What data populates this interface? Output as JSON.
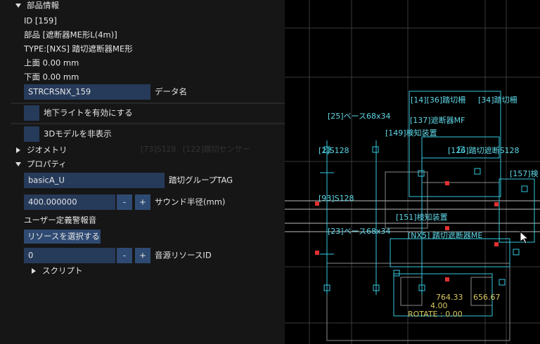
{
  "panel": {
    "section_info": "部品情報",
    "id": "ID [159]",
    "part": "部品 [遮断器ME形L(4m)]",
    "type": "TYPE:[NXS] 踏切遮断器ME形",
    "top": "上面 0.00 mm",
    "bottom": "下面 0.00 mm",
    "data_name_value": "STRCRSNX_159",
    "data_name_label": "データ名",
    "underground_light": "地下ライトを有効にする",
    "hide_3d": "3Dモデルを非表示",
    "section_geometry": "ジオメトリ",
    "section_properties": "プロパティ",
    "group_tag_value": "basicA_U",
    "group_tag_label": "踏切グループTAG",
    "sound_radius_value": "400.000000",
    "minus": "-",
    "plus": "+",
    "sound_radius_label": "サウンド半径(mm)",
    "user_alarm": "ユーザー定義警報音",
    "select_resource": "リソースを選択する",
    "resource_id_value": "0",
    "resource_id_label": "音源リソースID",
    "section_script": "スクリプト"
  },
  "viewport": {
    "labels": [
      "[14][36]踏切柵",
      "[34]踏切柵",
      "[25]ベース68x34",
      "[137]遮断器MF",
      "[149]検知装置",
      "[2]S128",
      "[126]踏切遮断S128",
      "[157]検",
      "[93]S128",
      "[151]検知装置",
      "[23]ベース68x34",
      "[NX5] 踏切遮断器ME",
      "[73]S128",
      "[122]踏切センサー"
    ],
    "coord_x": "764.33",
    "coord_y": "656.67",
    "coord_z": "4.00",
    "rotate": "ROTATE : 0.00"
  }
}
